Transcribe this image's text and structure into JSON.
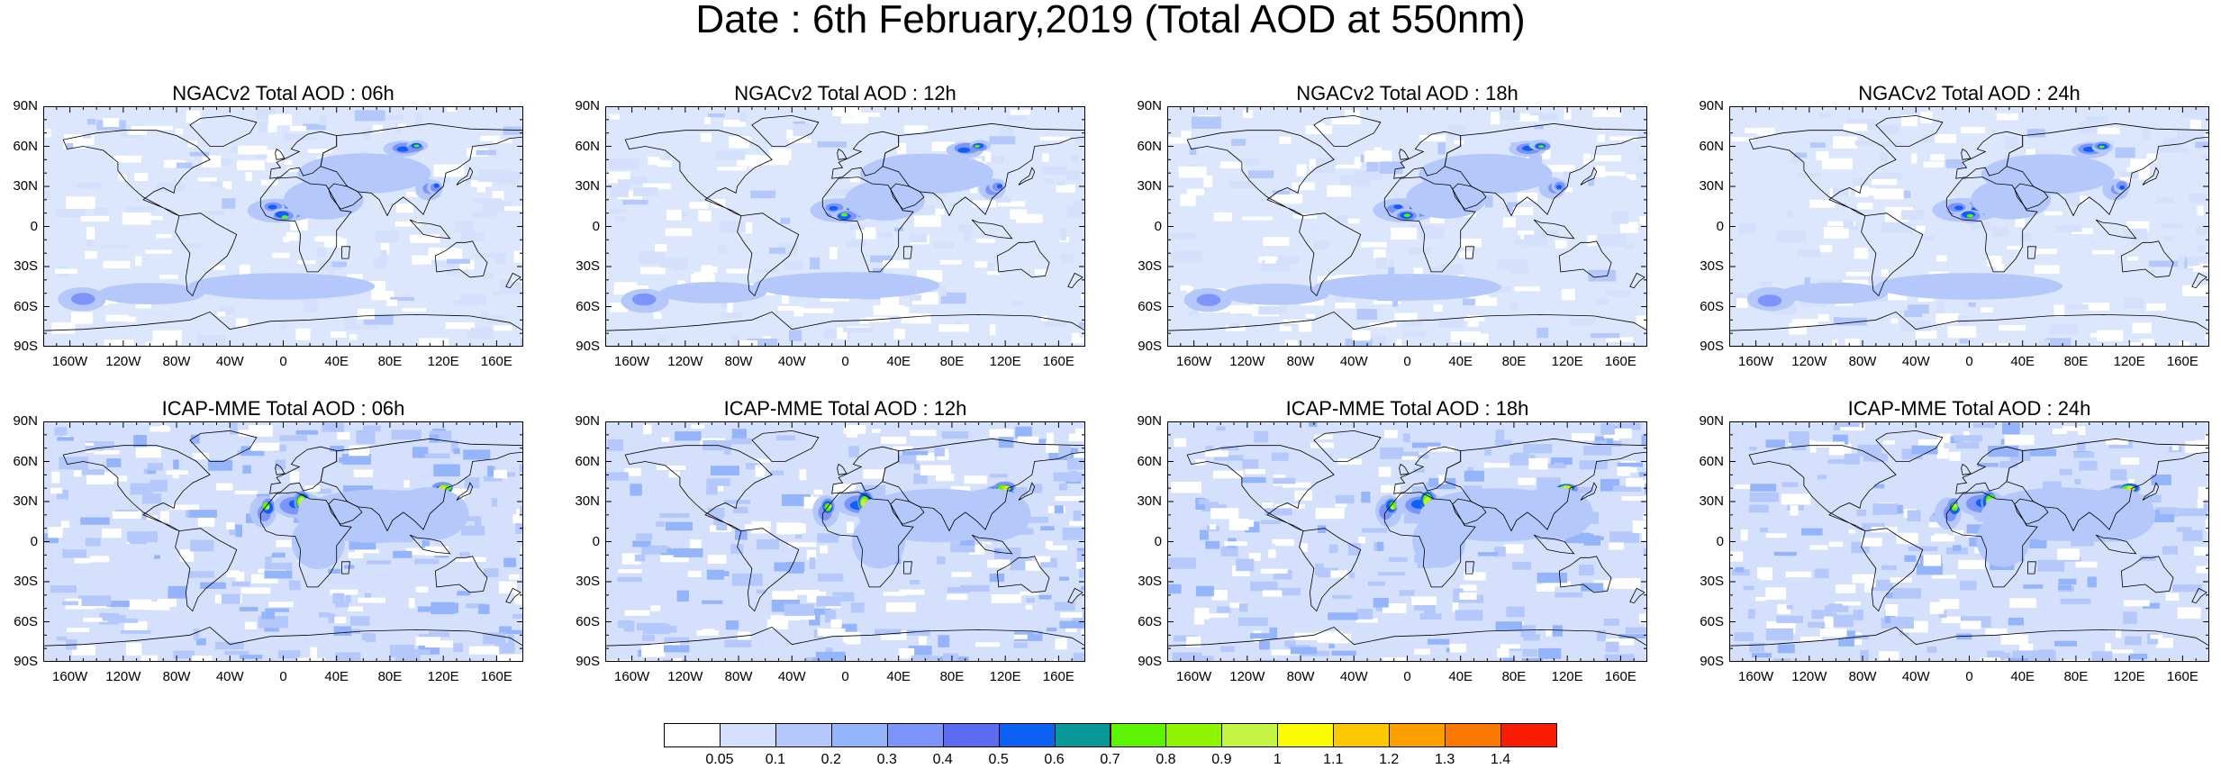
{
  "title": "Date : 6th February,2019 (Total AOD at 550nm)",
  "lat_labels": [
    "90N",
    "60N",
    "30N",
    "0",
    "30S",
    "60S",
    "90S"
  ],
  "lon_labels": [
    "160W",
    "120W",
    "80W",
    "40W",
    "0",
    "40E",
    "80E",
    "120E",
    "160E"
  ],
  "panels": [
    {
      "title": "NGACv2 Total AOD : 06h",
      "model": "NGACv2",
      "hour": 6
    },
    {
      "title": "NGACv2 Total AOD : 12h",
      "model": "NGACv2",
      "hour": 12
    },
    {
      "title": "NGACv2 Total AOD : 18h",
      "model": "NGACv2",
      "hour": 18
    },
    {
      "title": "NGACv2 Total AOD : 24h",
      "model": "NGACv2",
      "hour": 24
    },
    {
      "title": "ICAP-MME Total AOD : 06h",
      "model": "ICAP-MME",
      "hour": 6
    },
    {
      "title": "ICAP-MME Total AOD : 12h",
      "model": "ICAP-MME",
      "hour": 12
    },
    {
      "title": "ICAP-MME Total AOD : 18h",
      "model": "ICAP-MME",
      "hour": 18
    },
    {
      "title": "ICAP-MME Total AOD : 24h",
      "model": "ICAP-MME",
      "hour": 24
    }
  ],
  "colorbar": {
    "labels": [
      "0.05",
      "0.1",
      "0.2",
      "0.3",
      "0.4",
      "0.5",
      "0.6",
      "0.7",
      "0.8",
      "0.9",
      "1",
      "1.1",
      "1.2",
      "1.3",
      "1.4"
    ],
    "colors": [
      "#ffffff",
      "#d4e0fc",
      "#b4c8fc",
      "#94b4fc",
      "#7c94fc",
      "#5c6cf0",
      "#0c60f4",
      "#089898",
      "#5cf400",
      "#90f400",
      "#c4f444",
      "#fcfc00",
      "#fcc800",
      "#fca000",
      "#fc7800",
      "#f81c00"
    ]
  },
  "map_colors": {
    "background": "#dce6fc",
    "ocean_clear": "#ffffff",
    "light": "#c4d4fc",
    "medium": "#94b0fc",
    "coast": "#000000"
  }
}
